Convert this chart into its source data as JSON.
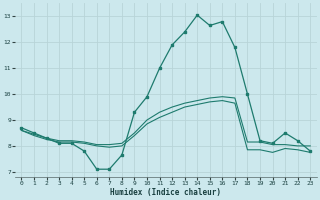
{
  "xlabel": "Humidex (Indice chaleur)",
  "bg_color": "#cce8ed",
  "grid_color": "#b8d4d8",
  "line_color": "#1e7b6e",
  "xlim": [
    -0.5,
    23.5
  ],
  "ylim": [
    6.8,
    13.5
  ],
  "yticks": [
    7,
    8,
    9,
    10,
    11,
    12,
    13
  ],
  "xticks": [
    0,
    1,
    2,
    3,
    4,
    5,
    6,
    7,
    8,
    9,
    10,
    11,
    12,
    13,
    14,
    15,
    16,
    17,
    18,
    19,
    20,
    21,
    22,
    23
  ],
  "line1_x": [
    0,
    1,
    2,
    3,
    4,
    5,
    6,
    7,
    8,
    9,
    10,
    11,
    12,
    13,
    14,
    15,
    16,
    17,
    18,
    19,
    20,
    21,
    22,
    23
  ],
  "line1_y": [
    8.7,
    8.5,
    8.3,
    8.1,
    8.1,
    7.8,
    7.1,
    7.1,
    7.65,
    9.3,
    9.9,
    11.0,
    11.9,
    12.4,
    13.05,
    12.65,
    12.8,
    11.8,
    10.0,
    8.2,
    8.1,
    8.5,
    8.2,
    7.8
  ],
  "line2_x": [
    0,
    1,
    2,
    3,
    4,
    5,
    6,
    7,
    8,
    9,
    10,
    11,
    12,
    13,
    14,
    15,
    16,
    17,
    18,
    19,
    20,
    21,
    22,
    23
  ],
  "line2_y": [
    8.6,
    8.45,
    8.3,
    8.2,
    8.2,
    8.15,
    8.05,
    8.05,
    8.1,
    8.5,
    9.0,
    9.3,
    9.5,
    9.65,
    9.75,
    9.85,
    9.9,
    9.85,
    8.15,
    8.15,
    8.05,
    8.05,
    8.0,
    8.0
  ],
  "line3_x": [
    0,
    1,
    2,
    3,
    4,
    5,
    6,
    7,
    8,
    9,
    10,
    11,
    12,
    13,
    14,
    15,
    16,
    17,
    18,
    19,
    20,
    21,
    22,
    23
  ],
  "line3_y": [
    8.6,
    8.4,
    8.25,
    8.15,
    8.15,
    8.1,
    8.0,
    7.95,
    8.0,
    8.4,
    8.85,
    9.1,
    9.3,
    9.5,
    9.6,
    9.7,
    9.75,
    9.65,
    7.85,
    7.85,
    7.75,
    7.9,
    7.85,
    7.75
  ]
}
